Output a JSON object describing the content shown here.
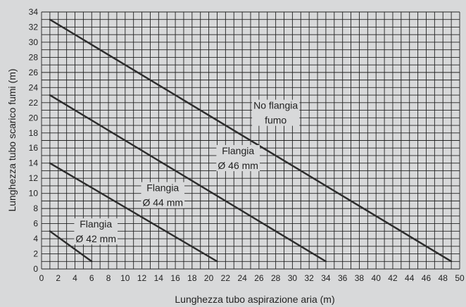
{
  "chart_data": {
    "type": "line",
    "xlabel": "Lunghezza tubo aspirazione aria (m)",
    "ylabel": "Lunghezza tubo scarico fumi (m)",
    "xlim": [
      0,
      50
    ],
    "ylim": [
      0,
      34
    ],
    "x_ticks": [
      0,
      2,
      4,
      6,
      8,
      10,
      12,
      14,
      16,
      18,
      20,
      22,
      24,
      26,
      28,
      30,
      32,
      34,
      36,
      38,
      40,
      42,
      44,
      46,
      48,
      50
    ],
    "y_ticks": [
      0,
      2,
      4,
      6,
      8,
      10,
      12,
      14,
      16,
      18,
      20,
      22,
      24,
      26,
      28,
      30,
      32,
      34
    ],
    "grid": true,
    "series": [
      {
        "points": [
          [
            1,
            5
          ],
          [
            6,
            1
          ]
        ]
      },
      {
        "points": [
          [
            1,
            14
          ],
          [
            21,
            1
          ]
        ]
      },
      {
        "points": [
          [
            1,
            23
          ],
          [
            34,
            1
          ]
        ]
      },
      {
        "points": [
          [
            1,
            33
          ],
          [
            49,
            1
          ]
        ]
      }
    ],
    "annotations": [
      {
        "lines": [
          "Flangia",
          "Ø 42 mm"
        ],
        "x": 6.5,
        "y": 5.2
      },
      {
        "lines": [
          "Flangia",
          "Ø 44 mm"
        ],
        "x": 14.5,
        "y": 10.0
      },
      {
        "lines": [
          "Flangia",
          "Ø 46 mm"
        ],
        "x": 23.5,
        "y": 14.9
      },
      {
        "lines": [
          "No flangia",
          "fumo"
        ],
        "x": 28.0,
        "y": 20.9
      }
    ],
    "colors": {
      "background": "#d8d9da",
      "grid": "#222222",
      "line": "#2b2b2b",
      "text": "#222222"
    }
  }
}
